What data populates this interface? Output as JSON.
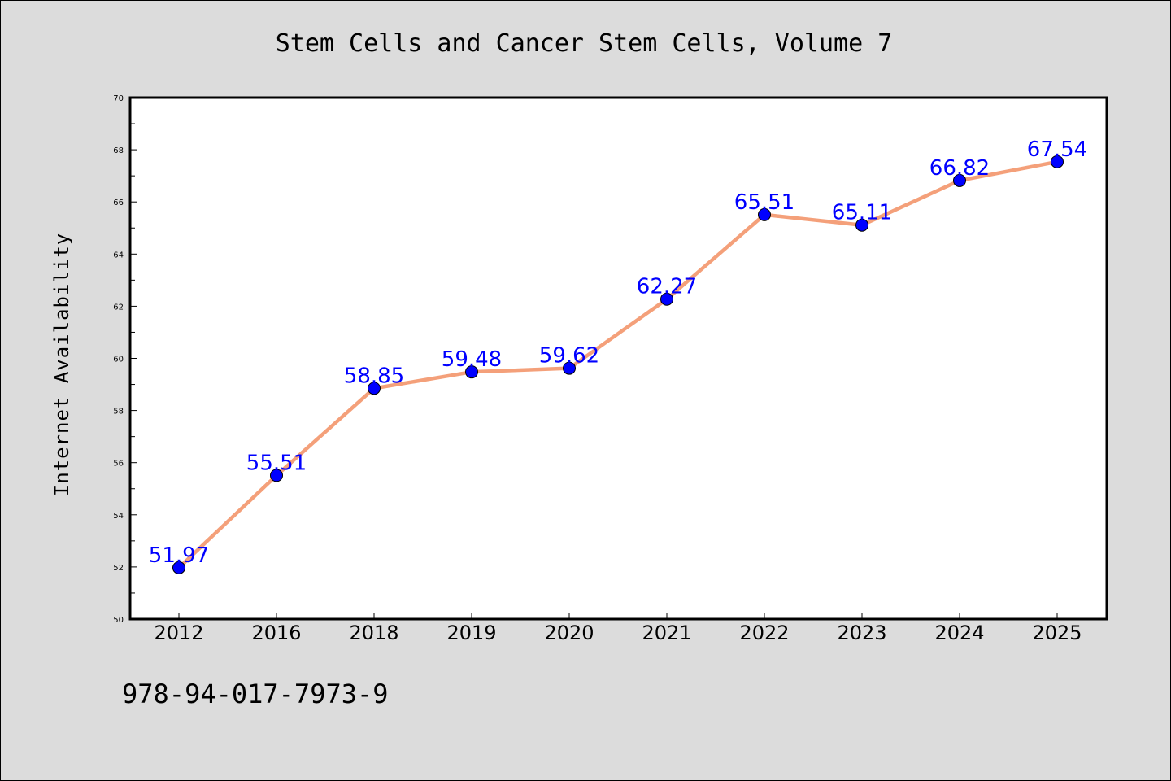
{
  "footer": {
    "isbn": "978-94-017-7973-9"
  },
  "chart_data": {
    "type": "line",
    "title": "Stem Cells and Cancer Stem Cells, Volume 7",
    "xlabel": "",
    "ylabel": "Internet Availability",
    "categories": [
      "2012",
      "2016",
      "2018",
      "2019",
      "2020",
      "2021",
      "2022",
      "2023",
      "2024",
      "2025"
    ],
    "series": [
      {
        "values": [
          51.97,
          55.51,
          58.85,
          59.48,
          59.62,
          62.27,
          65.51,
          65.11,
          66.82,
          67.54
        ],
        "data_labels": [
          "51.97",
          "55.51",
          "58.85",
          "59.48",
          "59.62",
          "62.27",
          "65.51",
          "65.11",
          "66.82",
          "67.54"
        ],
        "line_color": "#f4a07a",
        "marker_color": "#0000ff"
      }
    ],
    "ylim": [
      50,
      70
    ],
    "yticks": [
      "50",
      "52",
      "54",
      "56",
      "58",
      "60",
      "62",
      "64",
      "66",
      "68",
      "70"
    ],
    "grid": false,
    "legend": "none"
  }
}
